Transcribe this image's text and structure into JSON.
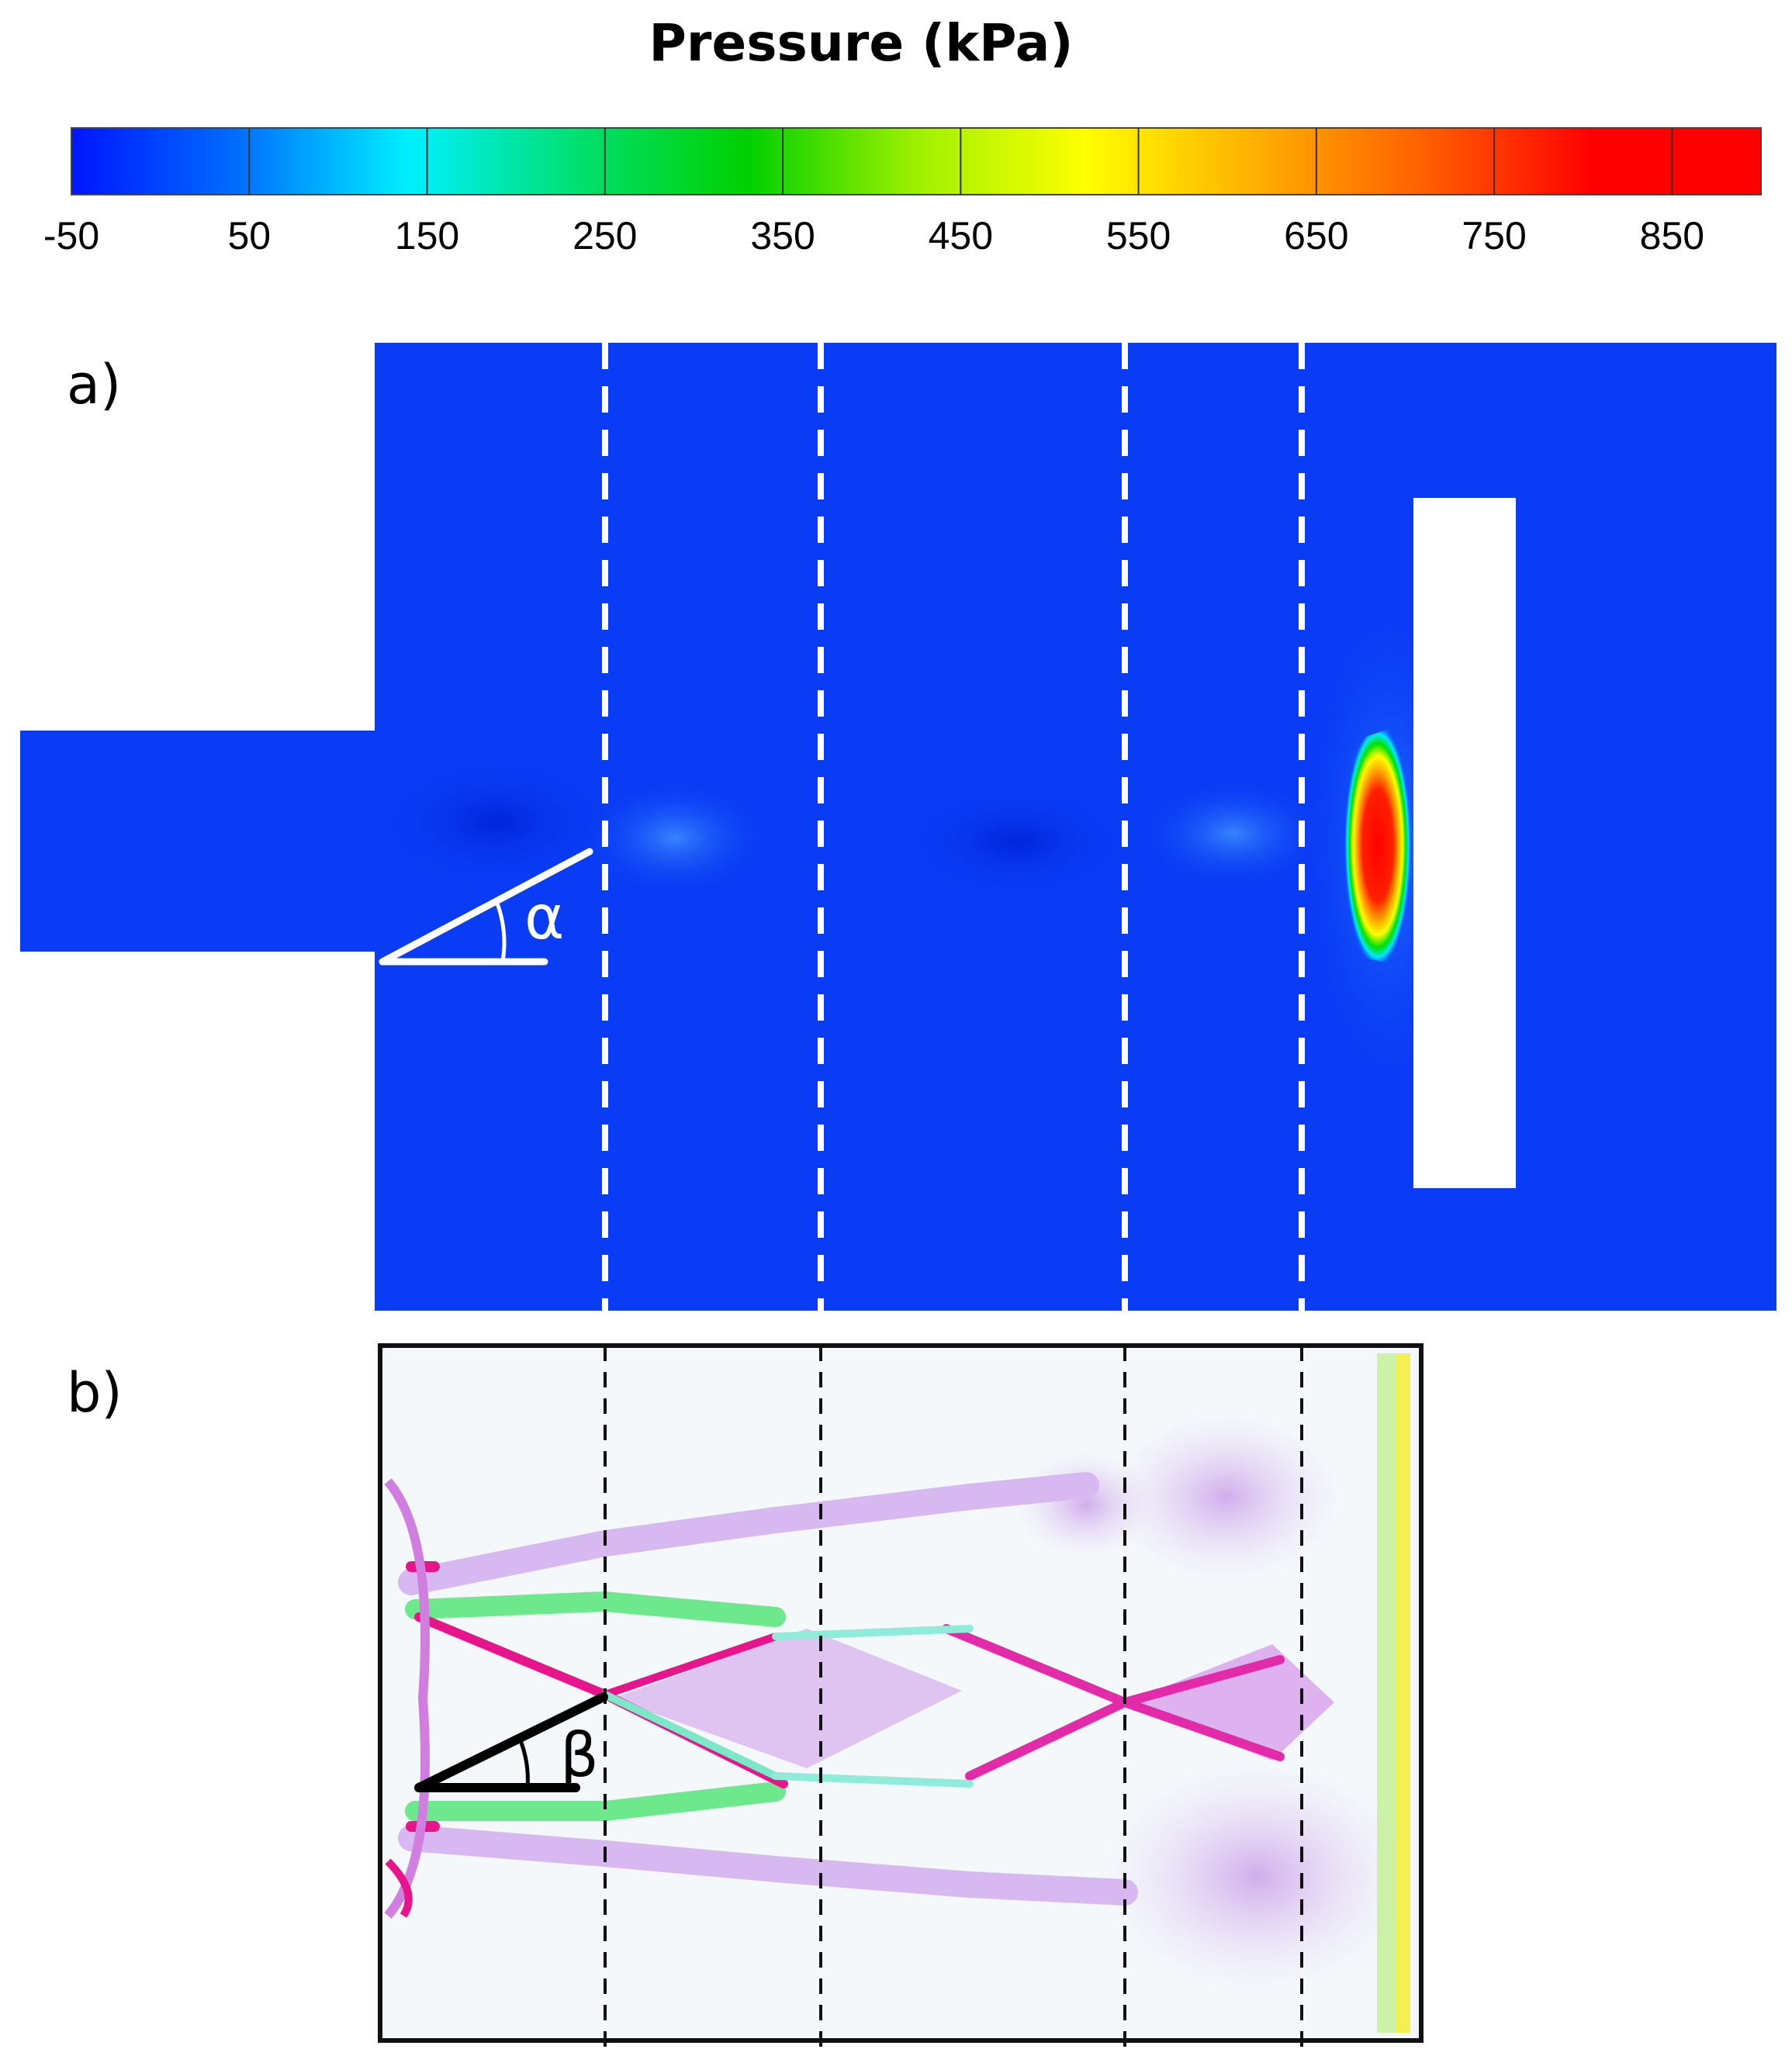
{
  "colorbar": {
    "title": "Pressure (kPa)",
    "ticks": [
      "-50",
      "50",
      "150",
      "250",
      "350",
      "450",
      "550",
      "650",
      "750",
      "850"
    ],
    "range": [
      -50,
      900
    ],
    "colors": [
      "#0014ff",
      "#0070ff",
      "#00f0ff",
      "#00e070",
      "#00d000",
      "#9ef000",
      "#ffff00",
      "#ffb000",
      "#ff6000",
      "#ff0000",
      "#ff0000"
    ]
  },
  "panel_a": {
    "label": "a)",
    "angle_label": "α",
    "background_color": "#0a3cf5",
    "peak_color": "#ff1a00"
  },
  "panel_b": {
    "label": "b)",
    "angle_label": "β",
    "accent_colors": [
      "#e8148c",
      "#33e060",
      "#ffff33",
      "#d8b8f0"
    ]
  }
}
